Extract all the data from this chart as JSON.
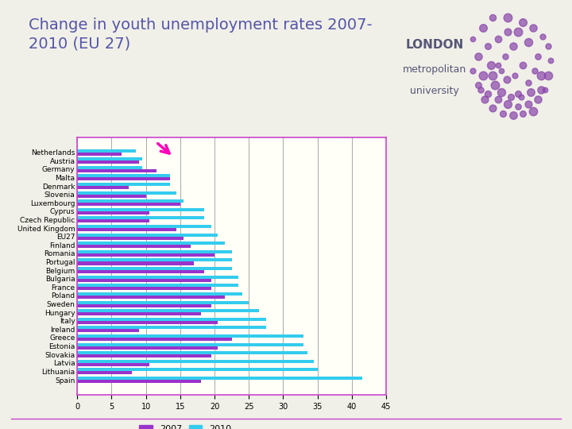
{
  "title": "Change in youth unemployment rates 2007-\n2010 (EU 27)",
  "title_fontsize": 14,
  "title_color": "#5555aa",
  "background_color": "#f0f0e8",
  "plot_bg_color": "#fffff8",
  "border_color": "#cc44cc",
  "countries": [
    "Netherlands",
    "Austria",
    "Germany",
    "Malta",
    "Denmark",
    "Slovenia",
    "Luxembourg",
    "Cyprus",
    "Czech Republic",
    "United Kingdom",
    "EU27",
    "Finland",
    "Romania",
    "Portugal",
    "Belgium",
    "Bulgaria",
    "France",
    "Poland",
    "Sweden",
    "Hungary",
    "Italy",
    "Ireland",
    "Greece",
    "Estonia",
    "Slovakia",
    "Latvia",
    "Lithuania",
    "Spain"
  ],
  "values_2007": [
    6.5,
    9.0,
    11.5,
    13.5,
    7.5,
    10.0,
    15.0,
    10.5,
    10.5,
    14.5,
    15.5,
    16.5,
    20.0,
    17.0,
    18.5,
    19.5,
    19.5,
    21.5,
    19.5,
    18.0,
    20.5,
    9.0,
    22.5,
    20.5,
    19.5,
    10.5,
    8.0,
    18.0
  ],
  "values_2010": [
    8.5,
    9.5,
    9.5,
    13.5,
    13.5,
    14.5,
    15.5,
    18.5,
    18.5,
    19.5,
    20.5,
    21.5,
    22.5,
    22.5,
    22.5,
    23.5,
    23.5,
    24.0,
    25.0,
    26.5,
    27.5,
    27.5,
    33.0,
    33.0,
    33.5,
    34.5,
    35.0,
    41.5
  ],
  "color_2007": "#9933CC",
  "color_2010": "#33CCEE",
  "xlim": [
    0,
    45
  ],
  "xticks": [
    0,
    5,
    10,
    15,
    20,
    25,
    30,
    35,
    40,
    45
  ],
  "bar_height": 0.38,
  "legend_2007": "2007",
  "legend_2010": "2010",
  "london_text1": "LONDON",
  "london_text2": "metropolitan",
  "london_text3": "university",
  "tick_fontsize": 6.5,
  "xtick_fontsize": 7
}
